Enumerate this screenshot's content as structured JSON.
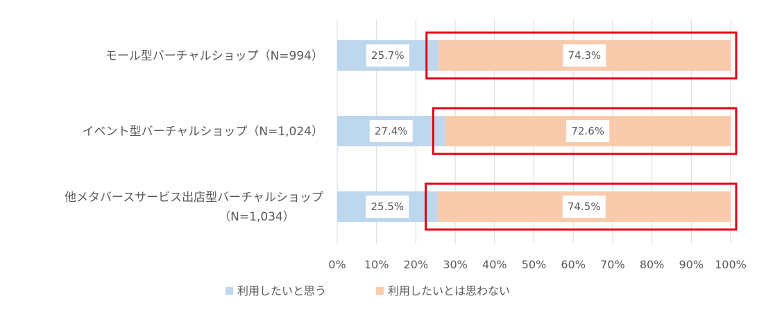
{
  "chart_data": {
    "type": "bar",
    "orientation": "horizontal",
    "stacked": "percent",
    "categories": [
      [
        "モール型バーチャルショップ（N=994）"
      ],
      [
        "イベント型バーチャルショップ（N=1,024）"
      ],
      [
        "他メタバースサービス出店型バーチャルショップ",
        "（N=1,034）"
      ]
    ],
    "series": [
      {
        "name": "利用したいと思う",
        "color": "#bdd7ee",
        "values": [
          25.7,
          27.4,
          25.5
        ],
        "labels": [
          "25.7%",
          "27.4%",
          "25.5%"
        ]
      },
      {
        "name": "利用したいとは思わない",
        "color": "#f8cbad",
        "values": [
          74.3,
          72.6,
          74.5
        ],
        "labels": [
          "74.3%",
          "72.6%",
          "74.5%"
        ]
      }
    ],
    "xlim": [
      0,
      100
    ],
    "x_ticks": [
      "0%",
      "10%",
      "20%",
      "30%",
      "40%",
      "50%",
      "60%",
      "70%",
      "80%",
      "90%",
      "100%"
    ],
    "grid": true,
    "legend_position": "bottom",
    "highlight": {
      "series_index": 1,
      "color": "#e60012"
    }
  }
}
